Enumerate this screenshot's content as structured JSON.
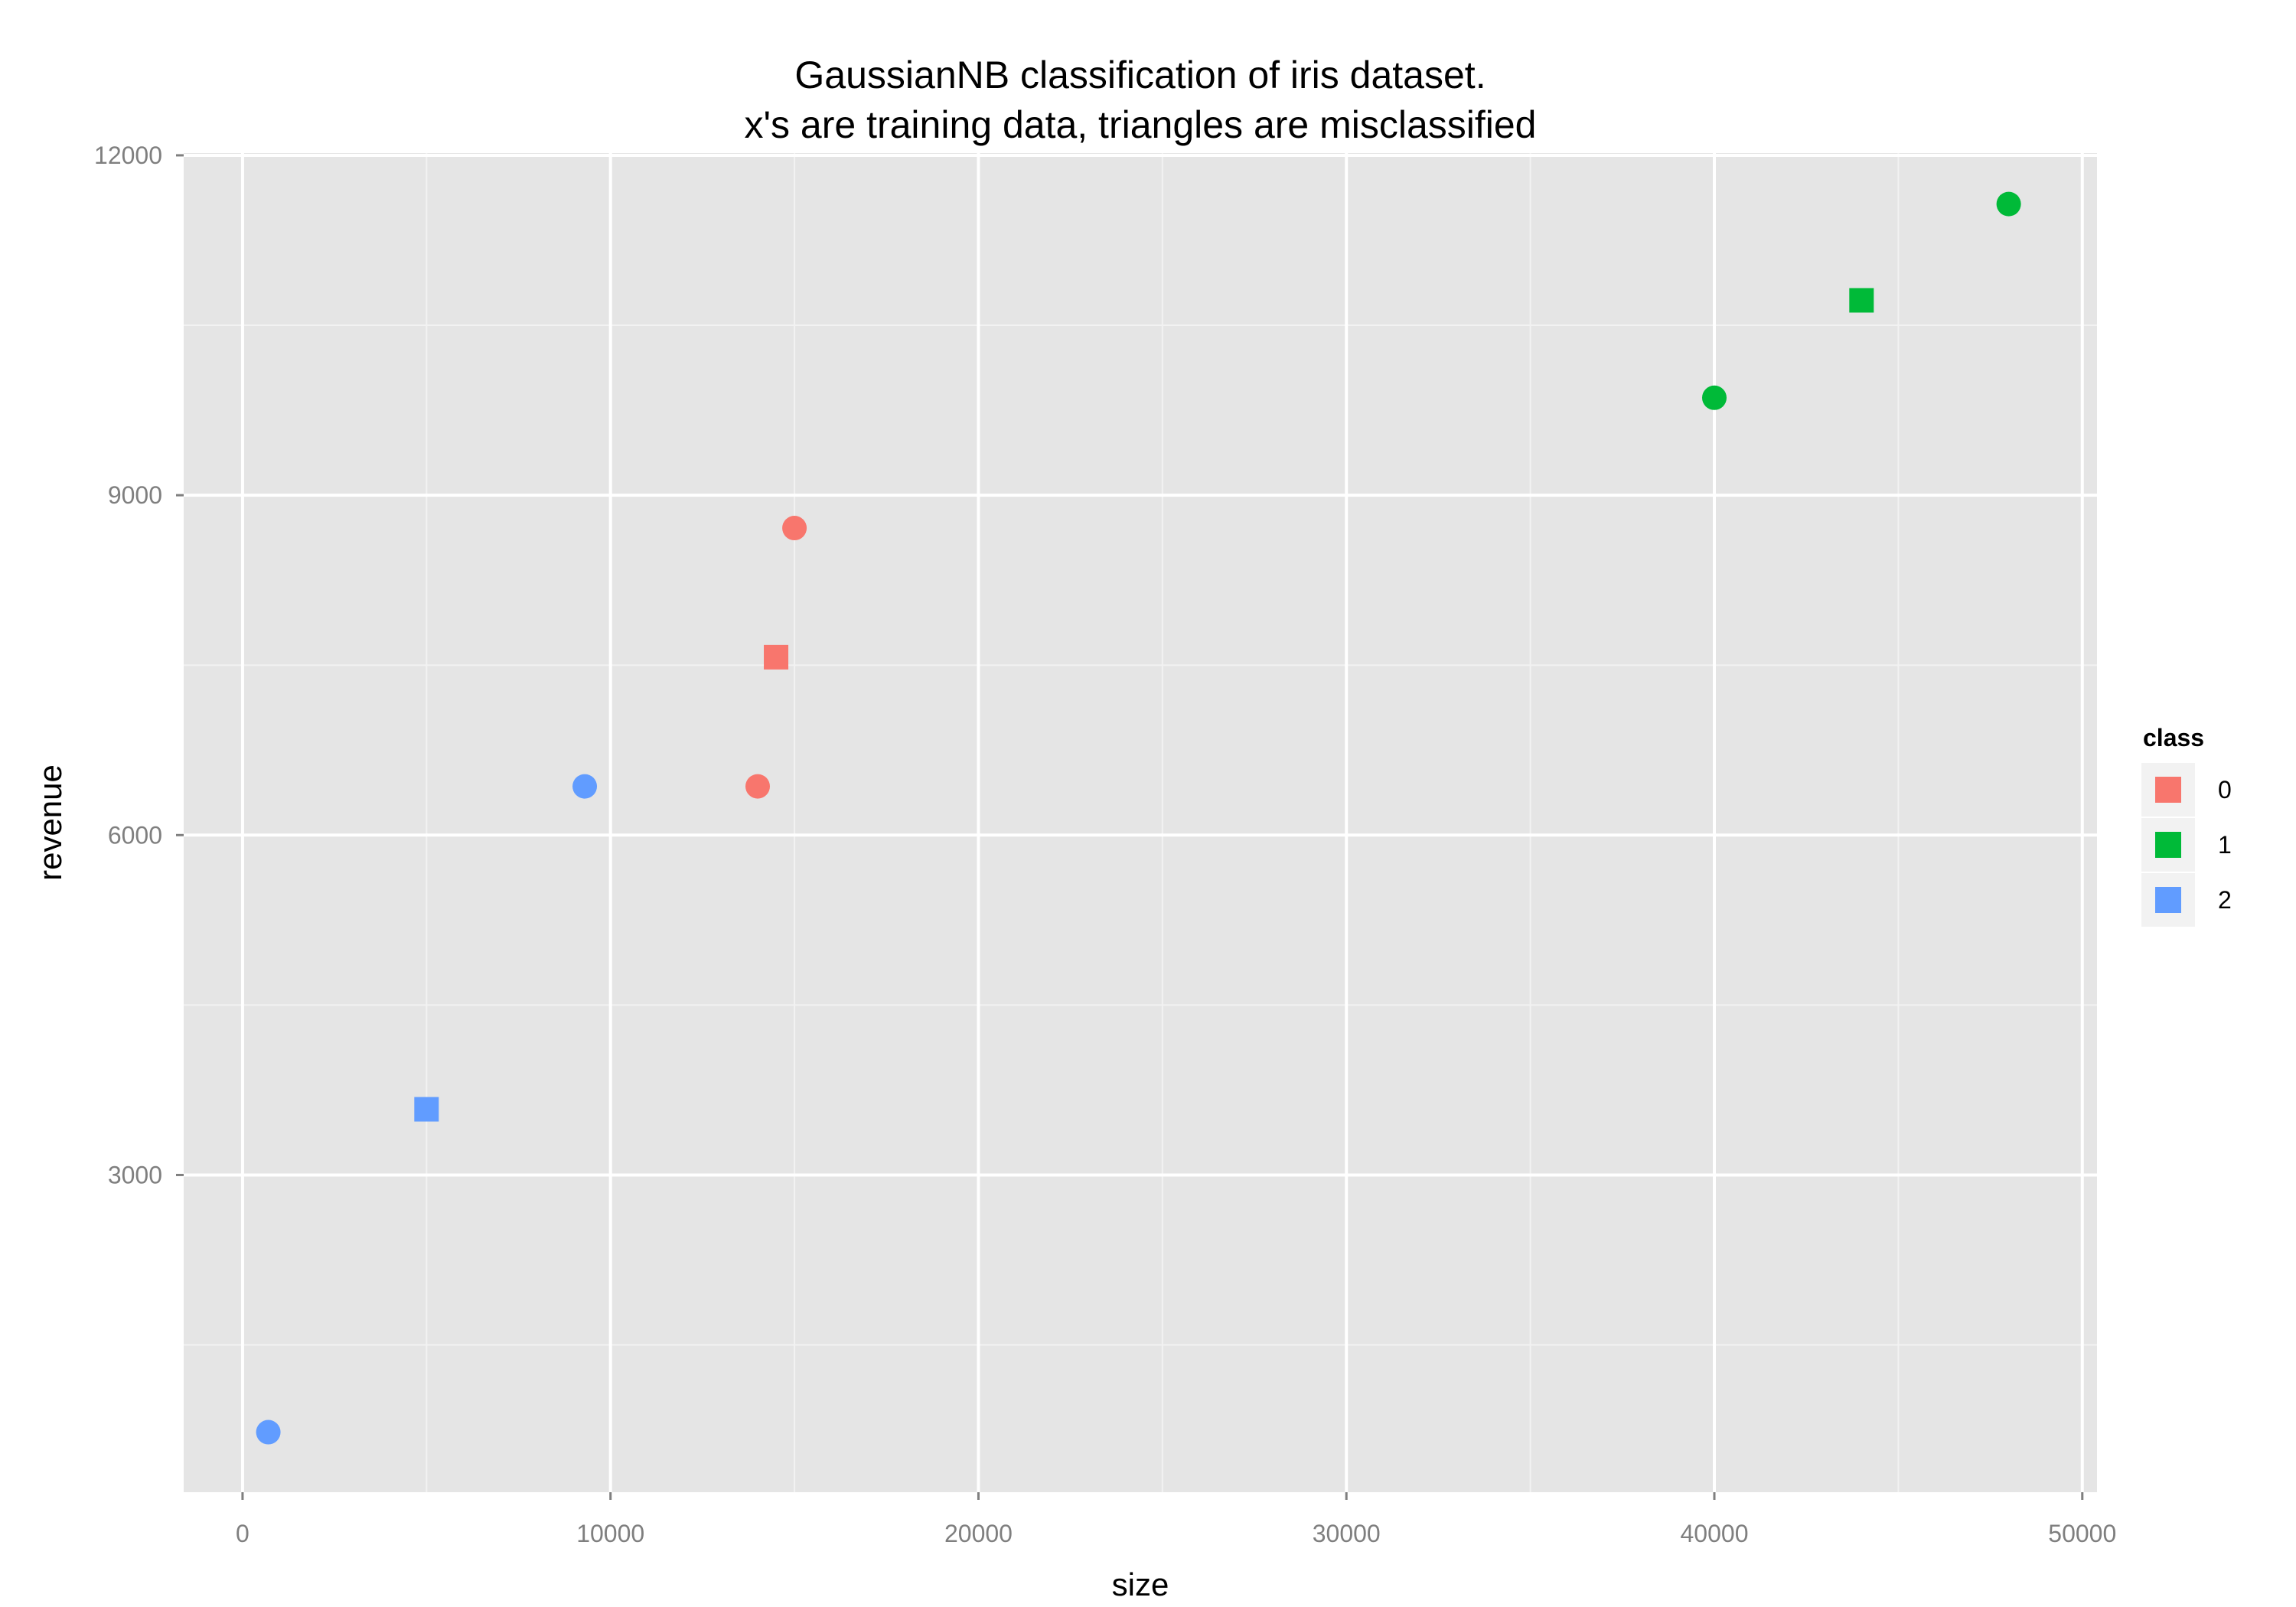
{
  "chart_data": {
    "type": "scatter",
    "title_lines": [
      "GaussianNB classification of iris dataset.",
      "x's are training data, triangles are misclassified"
    ],
    "xlabel": "size",
    "ylabel": "revenue",
    "xlim": [
      -1600,
      50400
    ],
    "ylim": [
      200,
      12020
    ],
    "xticks": [
      0,
      10000,
      20000,
      30000,
      40000,
      50000
    ],
    "xtick_labels": [
      "0",
      "10000",
      "20000",
      "30000",
      "40000",
      "50000"
    ],
    "yticks": [
      3000,
      6000,
      9000,
      12000
    ],
    "ytick_labels": [
      "3000",
      "6000",
      "9000",
      "12000"
    ],
    "grid": true,
    "legend": {
      "title": "class",
      "position": "right",
      "entries": [
        {
          "label": "0",
          "color": "#F8766D"
        },
        {
          "label": "1",
          "color": "#00BA38"
        },
        {
          "label": "2",
          "color": "#619CFF"
        }
      ]
    },
    "points": [
      {
        "x": 700,
        "y": 730,
        "class": "2",
        "shape": "circle"
      },
      {
        "x": 5000,
        "y": 3580,
        "class": "2",
        "shape": "square"
      },
      {
        "x": 9300,
        "y": 6430,
        "class": "2",
        "shape": "circle"
      },
      {
        "x": 14000,
        "y": 6430,
        "class": "0",
        "shape": "circle"
      },
      {
        "x": 14500,
        "y": 7570,
        "class": "0",
        "shape": "square"
      },
      {
        "x": 15000,
        "y": 8710,
        "class": "0",
        "shape": "circle"
      },
      {
        "x": 40000,
        "y": 9860,
        "class": "1",
        "shape": "circle"
      },
      {
        "x": 44000,
        "y": 10720,
        "class": "1",
        "shape": "square"
      },
      {
        "x": 48000,
        "y": 11570,
        "class": "1",
        "shape": "circle"
      }
    ]
  }
}
